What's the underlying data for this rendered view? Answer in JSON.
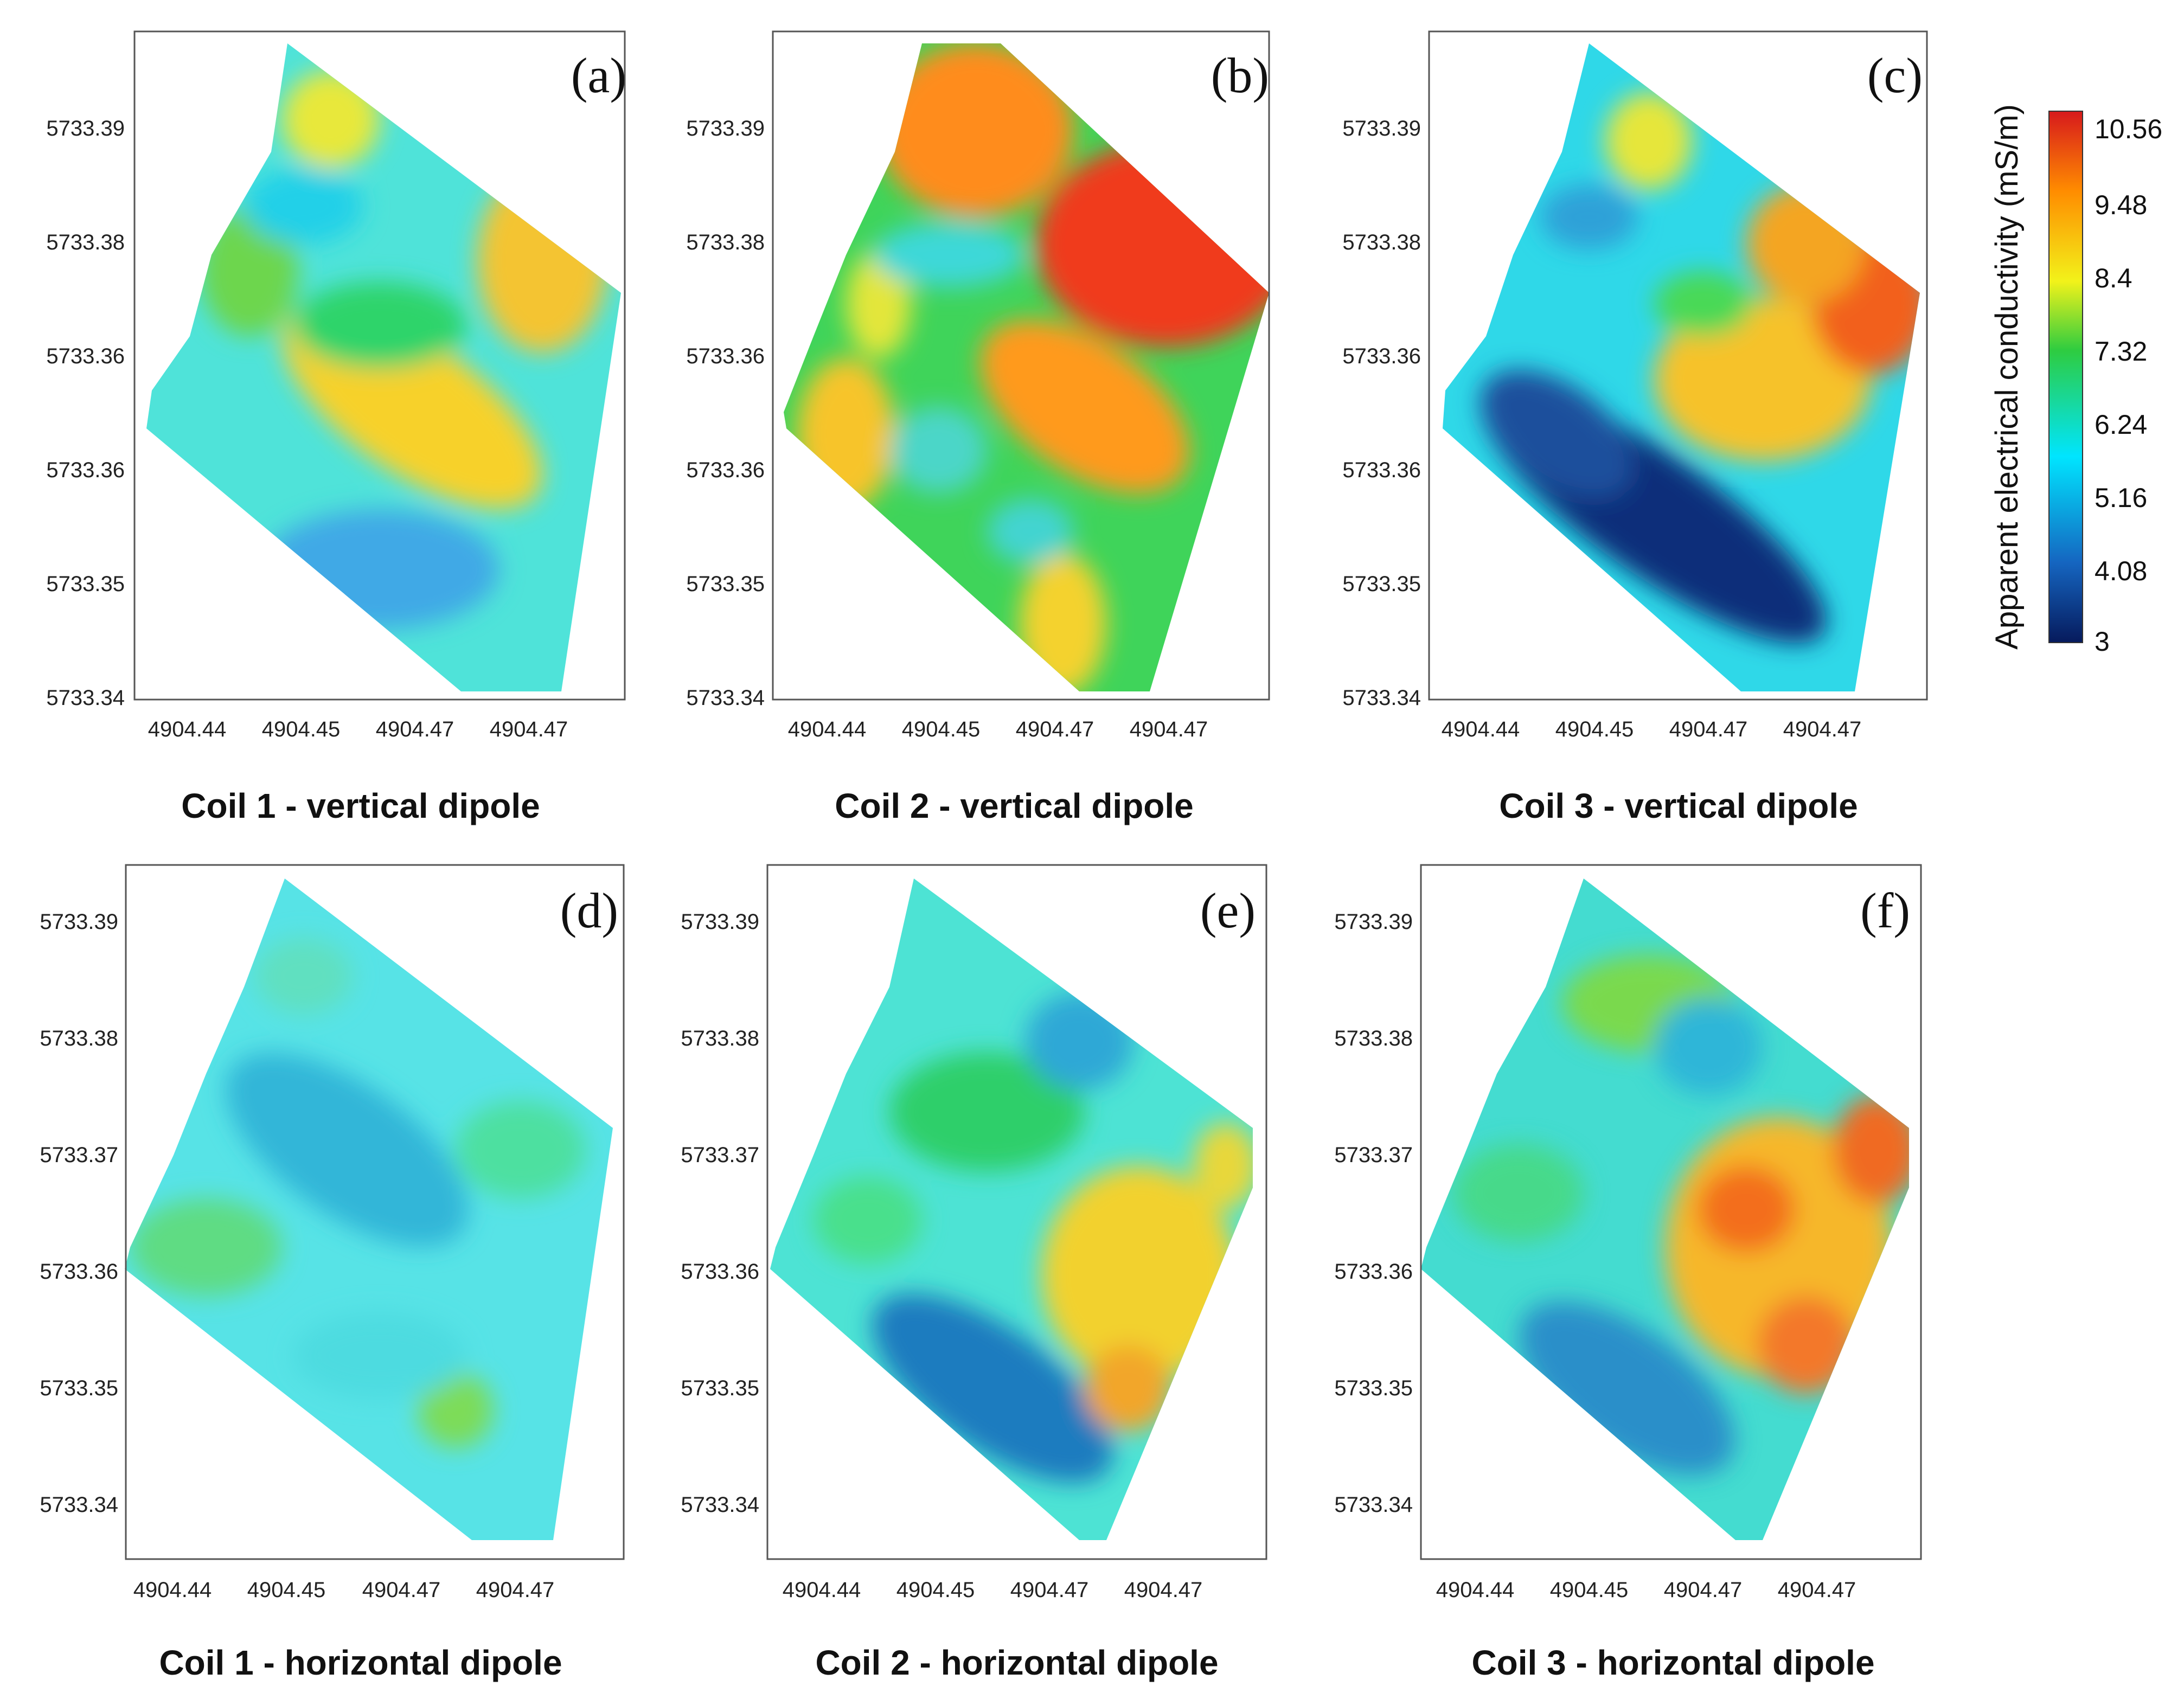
{
  "figure_type": "apparent electrical conductivity maps",
  "chart_data": [
    {
      "type": "heatmap",
      "panel": "(a)",
      "title": "Coil 1 - vertical dipole",
      "x_ticks": [
        "4904.44",
        "4904.45",
        "4904.47",
        "4904.47"
      ],
      "y_ticks": [
        "5733.39",
        "5733.38",
        "5733.36",
        "5733.36",
        "5733.35",
        "5733.34"
      ],
      "value_range_mS_m": [
        3,
        10.56
      ],
      "typical_value_mS_m": 6.8
    },
    {
      "type": "heatmap",
      "panel": "(b)",
      "title": "Coil 2 - vertical dipole",
      "x_ticks": [
        "4904.44",
        "4904.45",
        "4904.47",
        "4904.47"
      ],
      "y_ticks": [
        "5733.39",
        "5733.38",
        "5733.36",
        "5733.36",
        "5733.35",
        "5733.34"
      ],
      "value_range_mS_m": [
        3,
        10.56
      ],
      "typical_value_mS_m": 8.0
    },
    {
      "type": "heatmap",
      "panel": "(c)",
      "title": "Coil 3 - vertical dipole",
      "x_ticks": [
        "4904.44",
        "4904.45",
        "4904.47",
        "4904.47"
      ],
      "y_ticks": [
        "5733.39",
        "5733.38",
        "5733.36",
        "5733.36",
        "5733.35",
        "5733.34"
      ],
      "value_range_mS_m": [
        3,
        10.56
      ],
      "typical_value_mS_m": 6.5
    },
    {
      "type": "heatmap",
      "panel": "(d)",
      "title": "Coil 1 - horizontal dipole",
      "x_ticks": [
        "4904.44",
        "4904.45",
        "4904.47",
        "4904.47"
      ],
      "y_ticks": [
        "5733.39",
        "5733.38",
        "5733.37",
        "5733.36",
        "5733.35",
        "5733.34"
      ],
      "value_range_mS_m": [
        3,
        10.56
      ],
      "typical_value_mS_m": 6.0
    },
    {
      "type": "heatmap",
      "panel": "(e)",
      "title": "Coil 2 - horizontal dipole",
      "x_ticks": [
        "4904.44",
        "4904.45",
        "4904.47",
        "4904.47"
      ],
      "y_ticks": [
        "5733.39",
        "5733.38",
        "5733.37",
        "5733.36",
        "5733.35",
        "5733.34"
      ],
      "value_range_mS_m": [
        3,
        10.56
      ],
      "typical_value_mS_m": 6.6
    },
    {
      "type": "heatmap",
      "panel": "(f)",
      "title": "Coil 3 - horizontal dipole",
      "x_ticks": [
        "4904.44",
        "4904.45",
        "4904.47",
        "4904.47"
      ],
      "y_ticks": [
        "5733.39",
        "5733.38",
        "5733.37",
        "5733.36",
        "5733.35",
        "5733.34"
      ],
      "value_range_mS_m": [
        3,
        10.56
      ],
      "typical_value_mS_m": 7.2
    }
  ],
  "colorbar": {
    "title": "Apparent electrical conductivity (mS/m)",
    "labels": [
      "10.56",
      "9.48",
      "8.4",
      "7.32",
      "6.24",
      "5.16",
      "4.08",
      "3"
    ],
    "colors": [
      "#d7301f",
      "#ff7f00",
      "#fdd835",
      "#33cc33",
      "#00e5ff",
      "#1e88e5",
      "#0b2a7a"
    ]
  }
}
